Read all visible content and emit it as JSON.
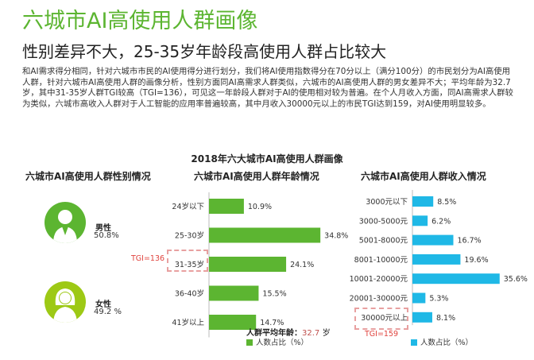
{
  "title": "六城市AI高使用人群画像",
  "subtitle": "性别差异不大，25-35岁年龄段高使用人群占比较大",
  "description": "和AI需求得分相同，针对六城市市民的AI使用得分进行划分，我们将AI使用指数得分在70分以上（满分100分）的市民划分为AI高使用人群，针对六城市AI高使用人群的画像分析，性别方面同AI高需求人群类似，六城市的AI高使用人群的男女差异不大；平均年龄为32.7岁，其中31-35岁人群TGI较高（TGI=136），可见这一年龄段人群对于AI的使用相对较为普遍。在个人月收入方面，同AI高需求人群较为类似，六城市高收入人群对于人工智能的应用率普遍较高，其中月收入30000元以上的市民TGI达到159，对AI使用明显较多。",
  "chart_title": "2018年六大城市AI高使用人群画像",
  "gender": {
    "title": "六城市AI高使用人群性别情况",
    "male_label": "男性",
    "male_value": "50.8%",
    "female_label": "女性",
    "female_value": "49.2 %"
  },
  "age": {
    "title": "六城市AI高使用人群年龄情况",
    "avg_label": "人群平均年龄：",
    "avg_value": "32.7",
    "avg_unit": "岁",
    "legend": "人数占比（%）",
    "tgi": "TGI=136"
  },
  "income": {
    "title": "六城市AI高使用人群收入情况",
    "legend": "人数占比（%）",
    "tgi": "TGI=159"
  },
  "colors": {
    "title_green": "#5cb531",
    "age_bar": "#5cb531",
    "income_bar": "#1fb8e6",
    "tgi_red": "#e0433e"
  },
  "chart_data": [
    {
      "type": "bar",
      "orientation": "horizontal",
      "title": "六城市AI高使用人群年龄情况",
      "categories": [
        "24岁以下",
        "25-30岁",
        "31-35岁",
        "36-40岁",
        "41岁以上"
      ],
      "values": [
        10.9,
        34.8,
        24.1,
        15.5,
        14.7
      ],
      "labels": [
        "10.9%",
        "34.8%",
        "24.1%",
        "15.5%",
        "14.7%"
      ],
      "xlim": [
        0,
        36
      ]
    },
    {
      "type": "bar",
      "orientation": "horizontal",
      "title": "六城市AI高使用人群收入情况",
      "categories": [
        "3000元以下",
        "3000-5000元",
        "5001-8000元",
        "8001-10000元",
        "10001-20000元",
        "20001-30000元",
        "30000元以上"
      ],
      "values": [
        8.5,
        6.2,
        16.7,
        19.6,
        35.6,
        5.3,
        8.1
      ],
      "labels": [
        "8.5%",
        "6.2%",
        "16.7%",
        "19.6%",
        "35.6%",
        "5.3%",
        "8.1%"
      ],
      "xlim": [
        0,
        36
      ]
    }
  ]
}
